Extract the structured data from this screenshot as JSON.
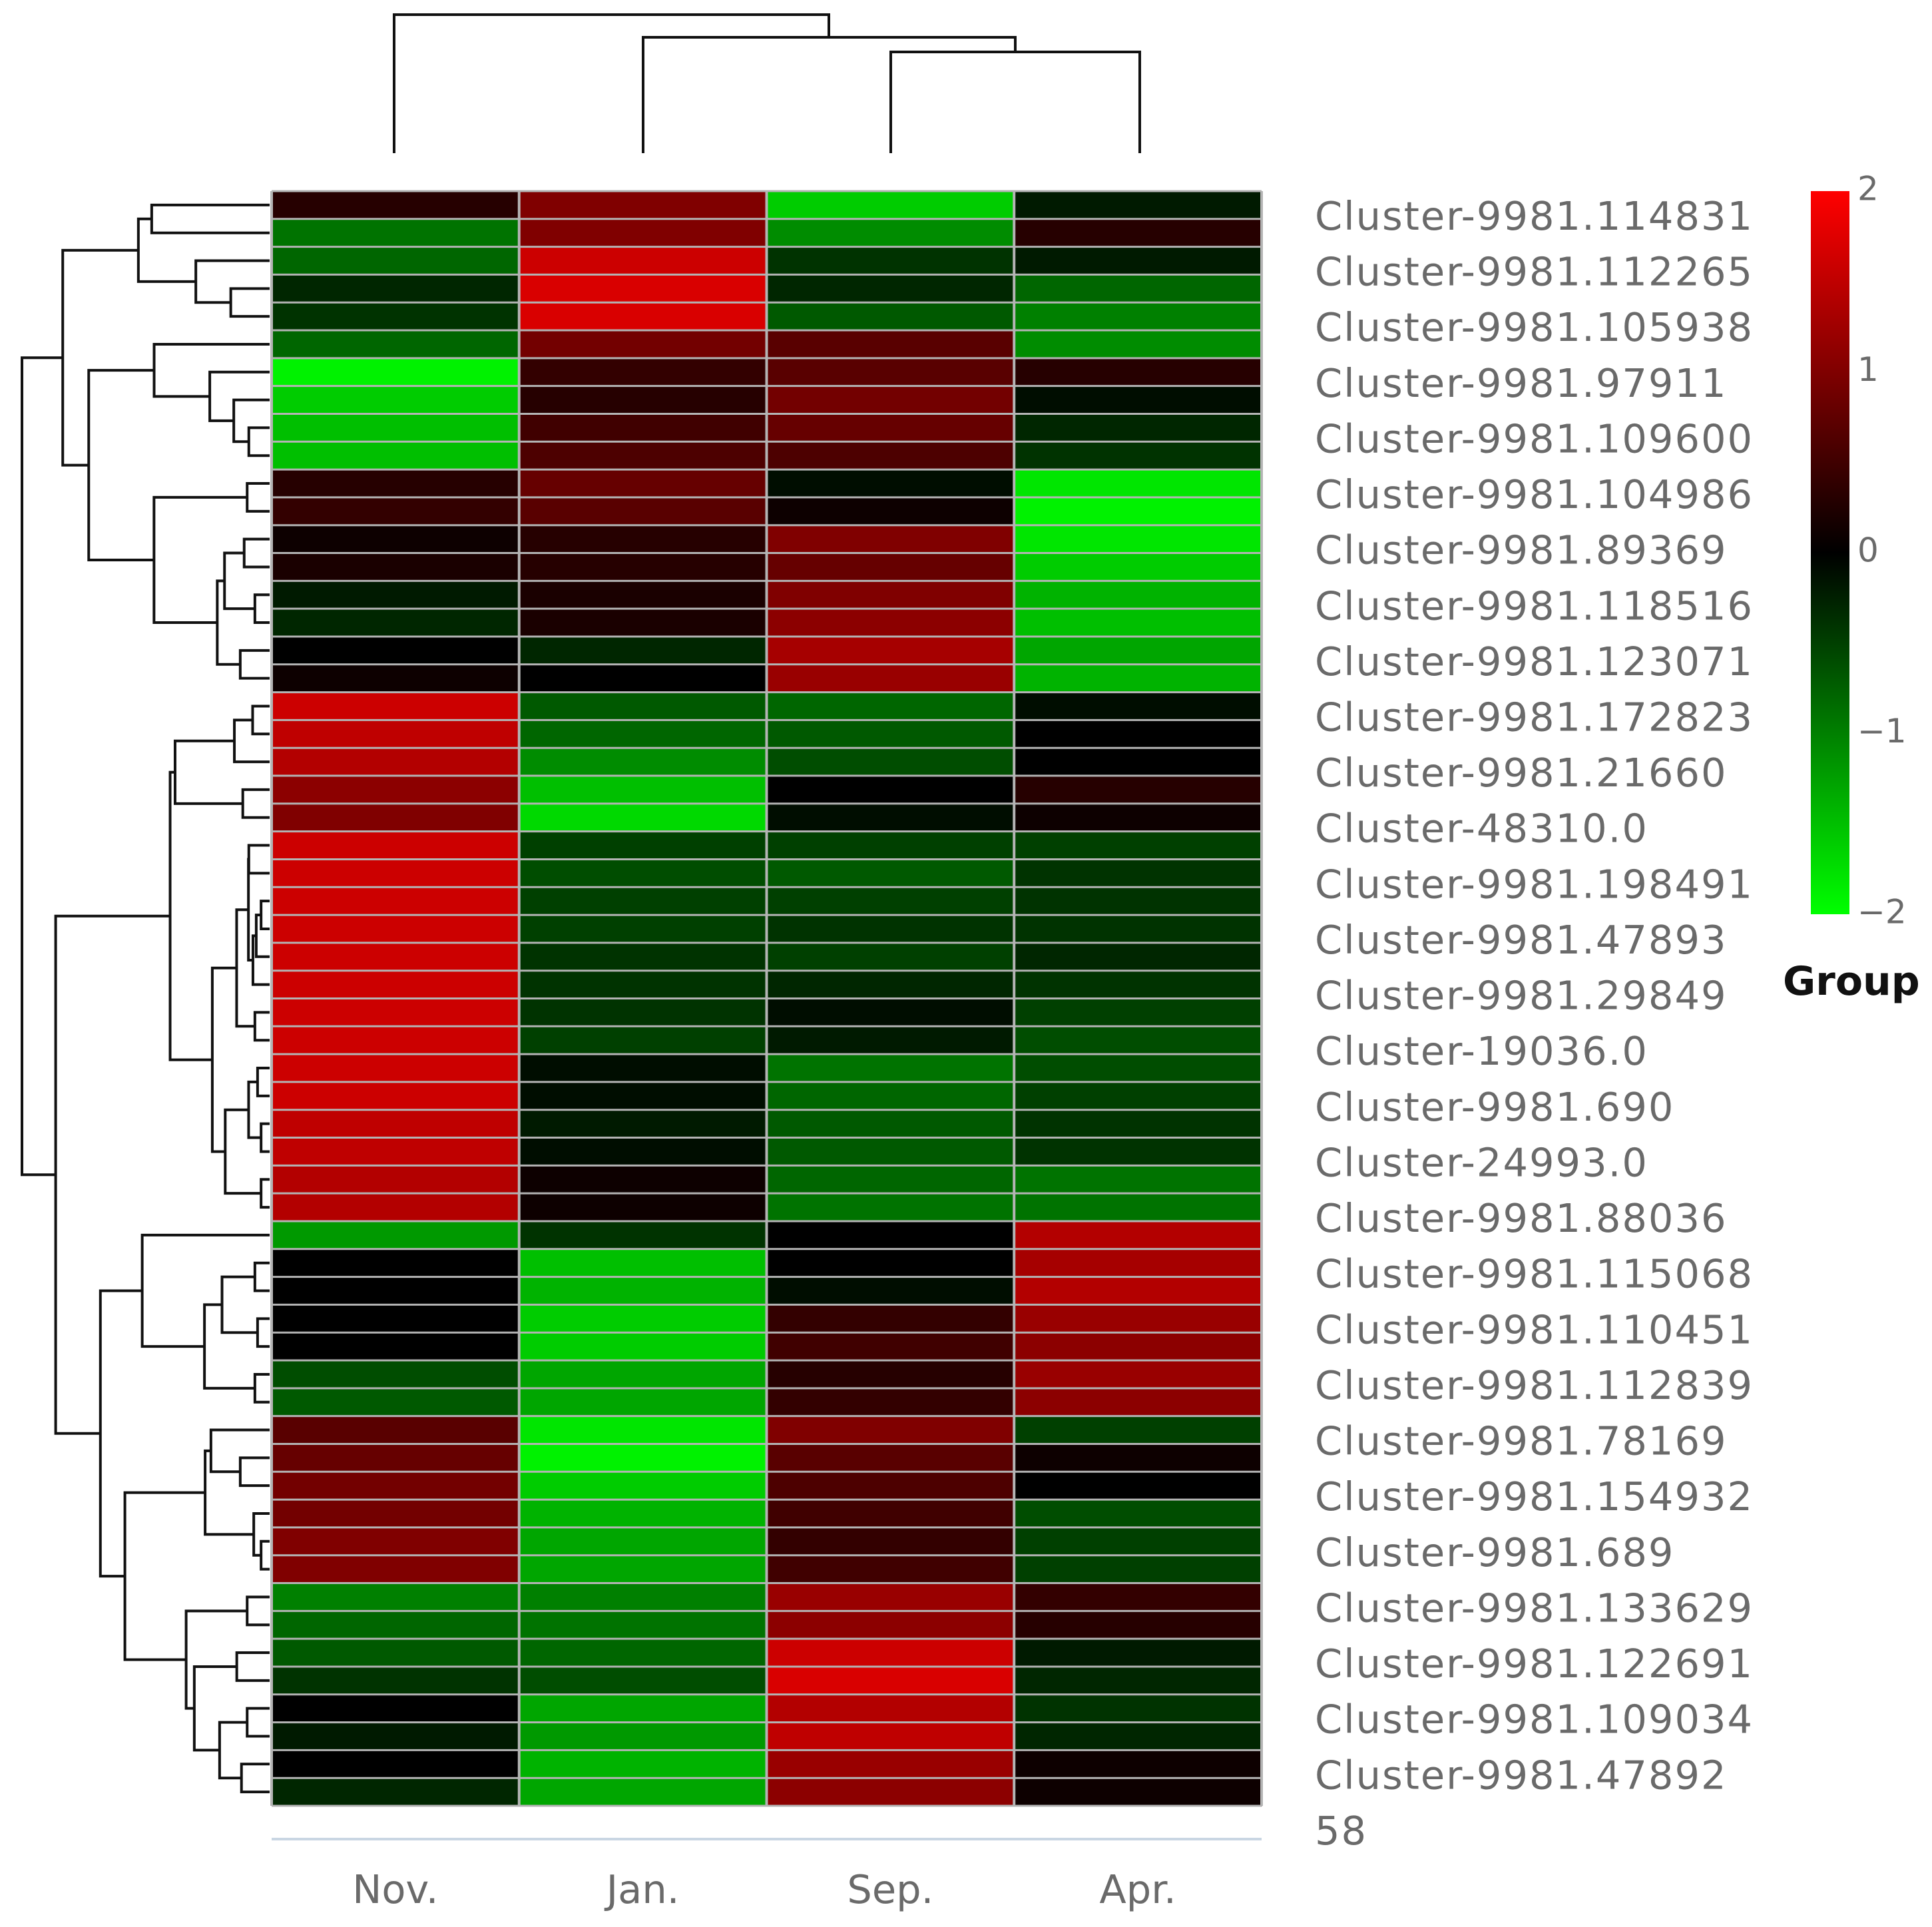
{
  "chart_data": {
    "type": "heatmap",
    "columns": [
      "Nov.",
      "Jan.",
      "Sep.",
      "Apr."
    ],
    "row_labels": [
      "Cluster-9981.114831",
      "Cluster-9981.112265",
      "Cluster-9981.105938",
      "Cluster-9981.97911",
      "Cluster-9981.109600",
      "Cluster-9981.104986",
      "Cluster-9981.89369",
      "Cluster-9981.118516",
      "Cluster-9981.123071",
      "Cluster-9981.172823",
      "Cluster-9981.21660",
      "Cluster-48310.0",
      "Cluster-9981.198491",
      "Cluster-9981.47893",
      "Cluster-9981.29849",
      "Cluster-19036.0",
      "Cluster-9981.690",
      "Cluster-24993.0",
      "Cluster-9981.88036",
      "Cluster-9981.115068",
      "Cluster-9981.110451",
      "Cluster-9981.112839",
      "Cluster-9981.78169",
      "Cluster-9981.154932",
      "Cluster-9981.689",
      "Cluster-9981.133629",
      "Cluster-9981.122691",
      "Cluster-9981.109034",
      "Cluster-9981.47892",
      "58"
    ],
    "n_rows": 58,
    "values": [
      [
        0.3,
        1.0,
        -1.6,
        -0.2
      ],
      [
        -0.9,
        1.0,
        -1.1,
        0.3
      ],
      [
        -0.8,
        1.6,
        -0.4,
        -0.2
      ],
      [
        -0.3,
        1.7,
        -0.3,
        -0.8
      ],
      [
        -0.4,
        1.7,
        -0.7,
        -1.0
      ],
      [
        -0.8,
        0.9,
        0.7,
        -1.1
      ],
      [
        -1.9,
        0.4,
        0.7,
        0.3
      ],
      [
        -1.6,
        0.3,
        0.9,
        -0.1
      ],
      [
        -1.5,
        0.5,
        0.8,
        -0.3
      ],
      [
        -1.5,
        0.6,
        0.6,
        -0.4
      ],
      [
        0.3,
        0.8,
        -0.1,
        -1.8
      ],
      [
        0.4,
        0.7,
        0.1,
        -1.9
      ],
      [
        0.1,
        0.3,
        1.0,
        -1.8
      ],
      [
        0.2,
        0.3,
        0.8,
        -1.6
      ],
      [
        -0.2,
        0.2,
        1.0,
        -1.4
      ],
      [
        -0.3,
        0.2,
        1.1,
        -1.5
      ],
      [
        0.0,
        -0.3,
        1.3,
        -1.3
      ],
      [
        0.1,
        0.0,
        1.2,
        -1.4
      ],
      [
        1.6,
        -0.7,
        -0.8,
        -0.1
      ],
      [
        1.5,
        -0.8,
        -0.7,
        0.0
      ],
      [
        1.4,
        -1.1,
        -0.6,
        0.0
      ],
      [
        1.1,
        -1.5,
        0.0,
        0.3
      ],
      [
        1.0,
        -1.7,
        -0.1,
        0.1
      ],
      [
        1.6,
        -0.5,
        -0.5,
        -0.5
      ],
      [
        1.6,
        -0.6,
        -0.7,
        -0.4
      ],
      [
        1.6,
        -0.5,
        -0.5,
        -0.4
      ],
      [
        1.6,
        -0.5,
        -0.4,
        -0.4
      ],
      [
        1.6,
        -0.4,
        -0.5,
        -0.3
      ],
      [
        1.6,
        -0.4,
        -0.3,
        -0.4
      ],
      [
        1.6,
        -0.4,
        -0.1,
        -0.5
      ],
      [
        1.6,
        -0.5,
        -0.2,
        -0.6
      ],
      [
        1.6,
        -0.1,
        -0.9,
        -0.6
      ],
      [
        1.6,
        -0.1,
        -0.8,
        -0.5
      ],
      [
        1.5,
        -0.2,
        -0.7,
        -0.4
      ],
      [
        1.5,
        -0.1,
        -0.7,
        -0.4
      ],
      [
        1.4,
        0.1,
        -0.8,
        -0.9
      ],
      [
        1.4,
        0.1,
        -0.9,
        -0.9
      ],
      [
        -1.2,
        -0.4,
        0.0,
        1.4
      ],
      [
        0.0,
        -1.5,
        0.0,
        1.3
      ],
      [
        0.0,
        -1.4,
        -0.1,
        1.4
      ],
      [
        0.0,
        -1.6,
        0.4,
        1.2
      ],
      [
        0.0,
        -1.6,
        0.5,
        1.1
      ],
      [
        -0.6,
        -1.3,
        0.3,
        1.2
      ],
      [
        -0.7,
        -1.3,
        0.4,
        1.1
      ],
      [
        0.7,
        -1.8,
        1.0,
        -0.5
      ],
      [
        0.8,
        -1.9,
        0.7,
        0.1
      ],
      [
        0.9,
        -1.6,
        0.6,
        0.0
      ],
      [
        0.9,
        -1.4,
        0.5,
        -0.6
      ],
      [
        1.0,
        -1.3,
        0.4,
        -0.5
      ],
      [
        1.0,
        -1.3,
        0.5,
        -0.5
      ],
      [
        -1.0,
        -1.0,
        1.2,
        0.4
      ],
      [
        -0.8,
        -0.9,
        1.1,
        0.3
      ],
      [
        -0.7,
        -0.8,
        1.6,
        -0.2
      ],
      [
        -0.4,
        -0.6,
        1.7,
        -0.3
      ],
      [
        0.0,
        -1.3,
        1.4,
        -0.4
      ],
      [
        -0.2,
        -1.2,
        1.5,
        -0.3
      ],
      [
        0.0,
        -1.4,
        1.2,
        0.1
      ],
      [
        -0.3,
        -1.3,
        1.1,
        0.1
      ]
    ],
    "color_scale": {
      "min": -2,
      "max": 2,
      "colors": [
        "#00ff00",
        "#000000",
        "#ff0000"
      ],
      "ticks": [
        "2",
        "1",
        "0",
        "−1",
        "−2"
      ]
    },
    "legend_title": "Group",
    "legend_position": "right",
    "row_dendrogram": true,
    "column_dendrogram": true
  }
}
